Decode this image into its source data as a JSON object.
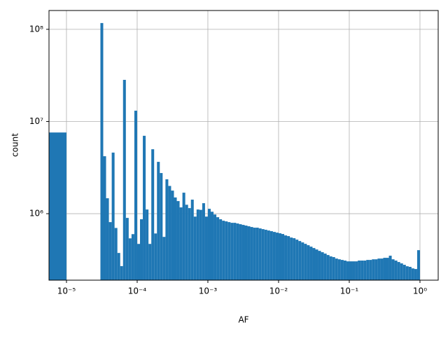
{
  "chart_data": {
    "type": "histogram",
    "xlabel": "AF",
    "ylabel": "count",
    "color": "#1f77b4",
    "grid": true,
    "xscale": "log",
    "yscale": "log",
    "xlim": [
      5.66e-06,
      1.81
    ],
    "ylim": [
      190000,
      160000000
    ],
    "xticks": [
      {
        "value": 1e-05,
        "label": "10⁻⁵"
      },
      {
        "value": 0.0001,
        "label": "10⁻⁴"
      },
      {
        "value": 0.001,
        "label": "10⁻³"
      },
      {
        "value": 0.01,
        "label": "10⁻²"
      },
      {
        "value": 0.1,
        "label": "10⁻¹"
      },
      {
        "value": 1,
        "label": "10⁰"
      }
    ],
    "yticks": [
      {
        "value": 1000000,
        "label": "10⁶"
      },
      {
        "value": 10000000,
        "label": "10⁷"
      },
      {
        "value": 100000000,
        "label": "10⁸"
      }
    ],
    "bins": [
      0,
      1e-05,
      1.0965e-05,
      1.2023e-05,
      1.3183e-05,
      1.4454e-05,
      1.5849e-05,
      1.7378e-05,
      1.9055e-05,
      2.0893e-05,
      2.2909e-05,
      2.5119e-05,
      2.7542e-05,
      3.02e-05,
      3.3113e-05,
      3.6308e-05,
      3.9811e-05,
      4.3652e-05,
      4.7863e-05,
      5.2481e-05,
      5.7544e-05,
      6.3096e-05,
      6.9183e-05,
      7.5858e-05,
      8.3176e-05,
      9.1201e-05,
      0.0001,
      0.00010965,
      0.00012023,
      0.00013183,
      0.00014454,
      0.00015849,
      0.00017378,
      0.00019055,
      0.00020893,
      0.00022909,
      0.00025119,
      0.00027542,
      0.000302,
      0.00033113,
      0.00036308,
      0.00039811,
      0.00043652,
      0.00047863,
      0.00052481,
      0.00057544,
      0.00063096,
      0.00069183,
      0.00075858,
      0.00083176,
      0.00091201,
      0.001,
      0.0010965,
      0.0012023,
      0.0013183,
      0.0014454,
      0.0015849,
      0.0017378,
      0.0019055,
      0.0020893,
      0.0022909,
      0.0025119,
      0.0027542,
      0.00302,
      0.0033113,
      0.0036308,
      0.0039811,
      0.0043652,
      0.0047863,
      0.0052481,
      0.0057544,
      0.0063096,
      0.0069183,
      0.0075858,
      0.0083176,
      0.0091201,
      0.01,
      0.010965,
      0.012023,
      0.013183,
      0.014454,
      0.015849,
      0.017378,
      0.019055,
      0.020893,
      0.022909,
      0.025119,
      0.027542,
      0.0302,
      0.033113,
      0.036308,
      0.039811,
      0.043652,
      0.047863,
      0.052481,
      0.057544,
      0.063096,
      0.069183,
      0.075858,
      0.083176,
      0.091201,
      0.1,
      0.10965,
      0.12023,
      0.13183,
      0.14454,
      0.15849,
      0.17378,
      0.19055,
      0.20893,
      0.22909,
      0.25119,
      0.27542,
      0.302,
      0.33113,
      0.36308,
      0.39811,
      0.43652,
      0.47863,
      0.52481,
      0.57544,
      0.63096,
      0.69183,
      0.75858,
      0.83176,
      0.91201,
      1
    ],
    "counts": [
      7600000,
      0,
      0,
      0,
      0,
      0,
      0,
      0,
      0,
      0,
      0,
      0,
      0,
      117000000,
      4200000,
      1470000,
      810000,
      4600000,
      700000,
      375000,
      270000,
      28300000,
      900000,
      540000,
      600000,
      13100000,
      470000,
      870000,
      7000000,
      1110000,
      470000,
      5000000,
      610000,
      3650000,
      2760000,
      560000,
      2360000,
      2000000,
      1780000,
      1500000,
      1370000,
      1170000,
      1690000,
      1250000,
      1150000,
      1420000,
      930000,
      1110000,
      1100000,
      1300000,
      930000,
      1130000,
      1050000,
      980000,
      916000,
      870000,
      839000,
      825000,
      810000,
      796000,
      796000,
      783000,
      769000,
      756000,
      743000,
      730000,
      717000,
      705000,
      705000,
      692000,
      680000,
      669000,
      657000,
      646000,
      634000,
      623000,
      613000,
      602000,
      581000,
      571000,
      551000,
      542000,
      523000,
      505000,
      488000,
      471000,
      455000,
      439000,
      424000,
      409000,
      395000,
      382000,
      369000,
      356000,
      344000,
      338000,
      326000,
      320000,
      315000,
      310000,
      304000,
      304000,
      304000,
      304000,
      310000,
      310000,
      310000,
      315000,
      315000,
      320000,
      320000,
      326000,
      326000,
      332000,
      332000,
      350000,
      320000,
      310000,
      299000,
      289000,
      279000,
      269000,
      265000,
      255000,
      251000,
      402000
    ]
  }
}
